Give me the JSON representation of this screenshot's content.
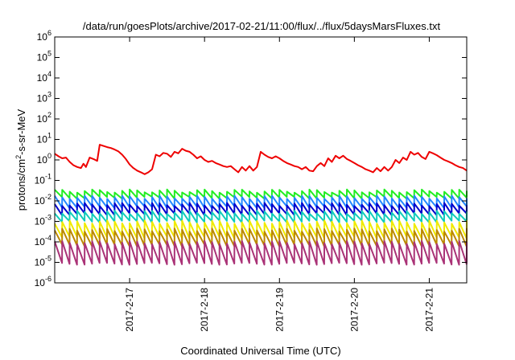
{
  "chart_data": {
    "type": "line",
    "title": "/data/run/goesPlots/archive/2017-02-21/11:00/flux/../flux/5daysMarsFluxes.txt",
    "xlabel": "Coordinated Universal Time (UTC)",
    "ylabel_main": "protons/cm",
    "ylabel_sup": "2",
    "ylabel_tail": "-s-sr-MeV",
    "scale": "log",
    "xlim": [
      "2017-02-16T00:00",
      "2017-02-21T12:00"
    ],
    "ylim": [
      1e-06,
      1000000.0
    ],
    "xticks": [
      {
        "date": "2017-02-17",
        "label": "2017-2-17"
      },
      {
        "date": "2017-02-18",
        "label": "2017-2-18"
      },
      {
        "date": "2017-02-19",
        "label": "2017-2-19"
      },
      {
        "date": "2017-02-20",
        "label": "2017-2-20"
      },
      {
        "date": "2017-02-21",
        "label": "2017-2-21"
      }
    ],
    "ytick_exponents": [
      -6,
      -5,
      -4,
      -3,
      -2,
      -1,
      0,
      1,
      2,
      3,
      4,
      5,
      6
    ],
    "ytick_base": "10",
    "grid": false,
    "legend": "none",
    "series": [
      {
        "color": "#ee0000",
        "points": [
          [
            "2017-02-16T00:00",
            2.0
          ],
          [
            "2017-02-16T01:12",
            1.5
          ],
          [
            "2017-02-16T02:24",
            1.2
          ],
          [
            "2017-02-16T03:36",
            1.3
          ],
          [
            "2017-02-16T04:48",
            0.8
          ],
          [
            "2017-02-16T06:00",
            0.55
          ],
          [
            "2017-02-16T07:12",
            0.45
          ],
          [
            "2017-02-16T08:24",
            0.4
          ],
          [
            "2017-02-16T09:12",
            0.65
          ],
          [
            "2017-02-16T10:00",
            0.45
          ],
          [
            "2017-02-16T11:12",
            1.3
          ],
          [
            "2017-02-16T12:24",
            1.1
          ],
          [
            "2017-02-16T13:36",
            0.9
          ],
          [
            "2017-02-16T14:24",
            5.5
          ],
          [
            "2017-02-16T15:36",
            4.8
          ],
          [
            "2017-02-16T16:48",
            4.2
          ],
          [
            "2017-02-16T18:00",
            3.8
          ],
          [
            "2017-02-16T19:12",
            3.2
          ],
          [
            "2017-02-16T20:24",
            2.6
          ],
          [
            "2017-02-16T21:36",
            1.8
          ],
          [
            "2017-02-16T22:48",
            1.1
          ],
          [
            "2017-02-17T00:00",
            0.6
          ],
          [
            "2017-02-17T01:12",
            0.4
          ],
          [
            "2017-02-17T02:24",
            0.3
          ],
          [
            "2017-02-17T03:36",
            0.25
          ],
          [
            "2017-02-17T04:48",
            0.2
          ],
          [
            "2017-02-17T06:00",
            0.25
          ],
          [
            "2017-02-17T07:12",
            0.35
          ],
          [
            "2017-02-17T08:24",
            1.8
          ],
          [
            "2017-02-17T09:36",
            1.5
          ],
          [
            "2017-02-17T10:48",
            2.2
          ],
          [
            "2017-02-17T12:00",
            2.0
          ],
          [
            "2017-02-17T13:12",
            1.4
          ],
          [
            "2017-02-17T14:24",
            2.5
          ],
          [
            "2017-02-17T15:36",
            2.1
          ],
          [
            "2017-02-17T16:48",
            3.5
          ],
          [
            "2017-02-17T18:00",
            2.8
          ],
          [
            "2017-02-17T19:12",
            2.5
          ],
          [
            "2017-02-17T20:24",
            1.8
          ],
          [
            "2017-02-17T21:36",
            1.2
          ],
          [
            "2017-02-17T22:48",
            1.5
          ],
          [
            "2017-02-18T00:00",
            1.0
          ],
          [
            "2017-02-18T01:12",
            0.8
          ],
          [
            "2017-02-18T02:24",
            0.9
          ],
          [
            "2017-02-18T03:36",
            0.7
          ],
          [
            "2017-02-18T04:48",
            0.6
          ],
          [
            "2017-02-18T06:00",
            0.5
          ],
          [
            "2017-02-18T07:12",
            0.45
          ],
          [
            "2017-02-18T08:24",
            0.5
          ],
          [
            "2017-02-18T09:36",
            0.35
          ],
          [
            "2017-02-18T10:48",
            0.25
          ],
          [
            "2017-02-18T12:00",
            0.45
          ],
          [
            "2017-02-18T13:12",
            0.3
          ],
          [
            "2017-02-18T14:24",
            0.5
          ],
          [
            "2017-02-18T15:36",
            0.3
          ],
          [
            "2017-02-18T16:48",
            0.45
          ],
          [
            "2017-02-18T18:00",
            2.5
          ],
          [
            "2017-02-18T19:12",
            1.8
          ],
          [
            "2017-02-18T20:24",
            1.4
          ],
          [
            "2017-02-18T21:36",
            1.2
          ],
          [
            "2017-02-18T22:48",
            1.5
          ],
          [
            "2017-02-19T00:00",
            1.2
          ],
          [
            "2017-02-19T01:12",
            0.9
          ],
          [
            "2017-02-19T02:24",
            0.7
          ],
          [
            "2017-02-19T03:36",
            0.6
          ],
          [
            "2017-02-19T04:48",
            0.5
          ],
          [
            "2017-02-19T06:00",
            0.45
          ],
          [
            "2017-02-19T07:12",
            0.35
          ],
          [
            "2017-02-19T08:24",
            0.45
          ],
          [
            "2017-02-19T09:36",
            0.3
          ],
          [
            "2017-02-19T10:48",
            0.28
          ],
          [
            "2017-02-19T12:00",
            0.5
          ],
          [
            "2017-02-19T13:12",
            0.7
          ],
          [
            "2017-02-19T14:24",
            0.5
          ],
          [
            "2017-02-19T15:36",
            1.2
          ],
          [
            "2017-02-19T16:48",
            0.8
          ],
          [
            "2017-02-19T18:00",
            1.6
          ],
          [
            "2017-02-19T19:12",
            1.2
          ],
          [
            "2017-02-19T20:24",
            1.6
          ],
          [
            "2017-02-19T21:36",
            1.1
          ],
          [
            "2017-02-19T22:48",
            0.9
          ],
          [
            "2017-02-20T00:00",
            0.7
          ],
          [
            "2017-02-20T01:12",
            0.55
          ],
          [
            "2017-02-20T02:24",
            0.45
          ],
          [
            "2017-02-20T03:36",
            0.35
          ],
          [
            "2017-02-20T04:48",
            0.3
          ],
          [
            "2017-02-20T06:00",
            0.25
          ],
          [
            "2017-02-20T07:12",
            0.4
          ],
          [
            "2017-02-20T08:24",
            0.28
          ],
          [
            "2017-02-20T09:36",
            0.45
          ],
          [
            "2017-02-20T10:48",
            0.3
          ],
          [
            "2017-02-20T12:00",
            0.45
          ],
          [
            "2017-02-20T13:12",
            1.0
          ],
          [
            "2017-02-20T14:24",
            0.7
          ],
          [
            "2017-02-20T15:36",
            1.3
          ],
          [
            "2017-02-20T16:48",
            1.0
          ],
          [
            "2017-02-20T18:00",
            2.5
          ],
          [
            "2017-02-20T19:12",
            1.8
          ],
          [
            "2017-02-20T20:24",
            2.2
          ],
          [
            "2017-02-20T21:36",
            1.4
          ],
          [
            "2017-02-20T22:48",
            1.1
          ],
          [
            "2017-02-21T00:00",
            2.5
          ],
          [
            "2017-02-21T01:12",
            2.1
          ],
          [
            "2017-02-21T02:24",
            1.7
          ],
          [
            "2017-02-21T03:36",
            1.3
          ],
          [
            "2017-02-21T04:48",
            1.0
          ],
          [
            "2017-02-21T06:00",
            0.85
          ],
          [
            "2017-02-21T07:12",
            0.7
          ],
          [
            "2017-02-21T08:24",
            0.55
          ],
          [
            "2017-02-21T09:36",
            0.45
          ],
          [
            "2017-02-21T10:48",
            0.4
          ],
          [
            "2017-02-21T12:00",
            0.3
          ]
        ]
      },
      {
        "color": "#22ee22",
        "high": 0.036,
        "low": 0.016
      },
      {
        "color": "#2288ff",
        "high": 0.018,
        "low": 0.0055
      },
      {
        "color": "#0000cc",
        "high": 0.008,
        "low": 0.0025
      },
      {
        "color": "#11ccbb",
        "high": 0.0033,
        "low": 0.0011
      },
      {
        "color": "#f0ea00",
        "high": 0.0011,
        "low": 0.00018
      },
      {
        "color": "#bb8800",
        "high": 0.00045,
        "low": 7.5e-05
      },
      {
        "color": "#aa3377",
        "high": 0.00011,
        "low": 9.5e-06
      }
    ]
  }
}
